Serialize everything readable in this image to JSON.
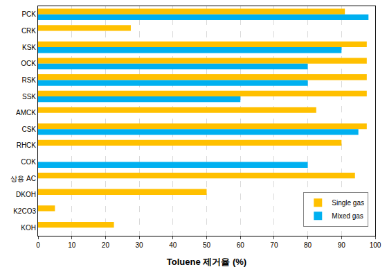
{
  "chart_data": {
    "type": "bar",
    "orientation": "horizontal",
    "xlabel": "Toluene 제거율 (%)",
    "categories": [
      "PCK",
      "CRK",
      "KSK",
      "OCK",
      "RSK",
      "SSK",
      "AMCK",
      "CSK",
      "RHCK",
      "COK",
      "상용 AC",
      "DKOH",
      "K2CO3",
      "KOH"
    ],
    "series": [
      {
        "name": "Single gas",
        "color": "#FFC000",
        "values": [
          91,
          27.5,
          97.5,
          97.5,
          97.5,
          97.5,
          82.5,
          97.5,
          90,
          null,
          94,
          50,
          5,
          22.5
        ]
      },
      {
        "name": "Mixed gas",
        "color": "#00B0F0",
        "values": [
          98,
          null,
          90,
          80,
          80,
          60,
          null,
          95,
          null,
          80,
          null,
          null,
          null,
          null
        ]
      }
    ],
    "xlim": [
      0,
      100
    ],
    "xticks": [
      0,
      10,
      20,
      30,
      40,
      50,
      60,
      70,
      80,
      90,
      100
    ],
    "grid": true,
    "legend": "lower right"
  }
}
